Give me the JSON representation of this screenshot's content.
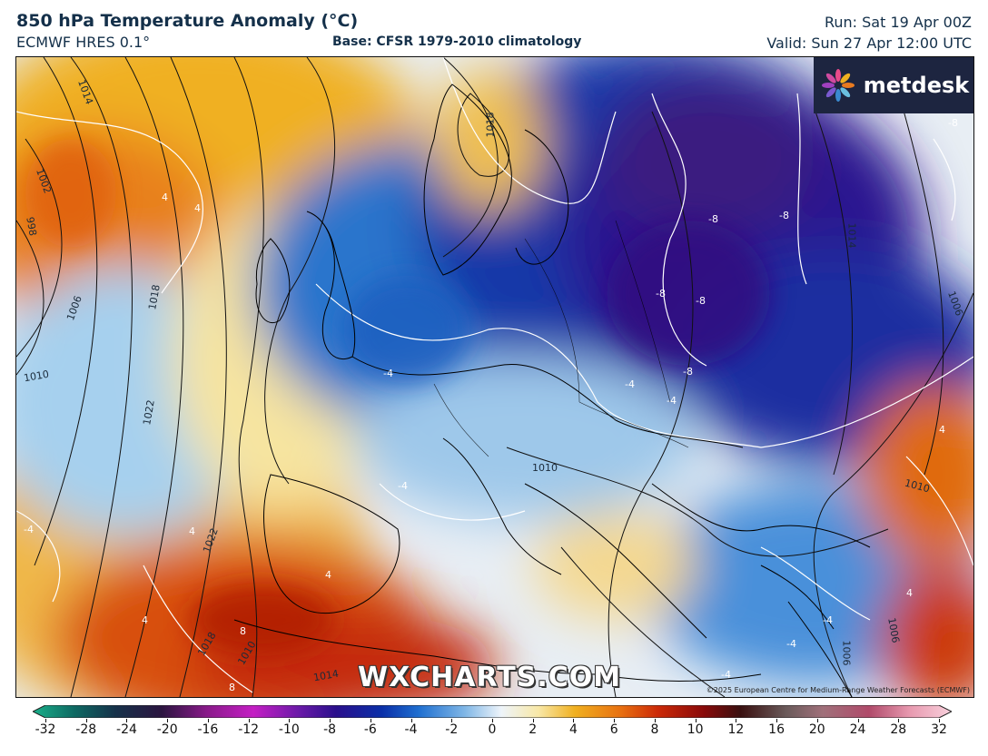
{
  "header": {
    "title": "850 hPa Temperature Anomaly (°C)",
    "model": "ECMWF HRES 0.1°",
    "base": "Base: CFSR 1979-2010 climatology",
    "run": "Run: Sat 19 Apr 00Z",
    "valid": "Valid: Sun 27 Apr 12:00 UTC"
  },
  "logo": {
    "text": "metdesk",
    "icon": "metdesk-flower-icon"
  },
  "watermark": "WXCHARTS.COM",
  "copyright": "©2025 European Centre for Medium-Range Weather Forecasts (ECMWF)",
  "isobar_labels": [
    "1014",
    "1018",
    "1002",
    "998",
    "1006",
    "1010",
    "1018",
    "1022",
    "1022",
    "1018",
    "1014",
    "1010",
    "1010",
    "1006",
    "1006",
    "1010",
    "1014",
    "1006"
  ],
  "anomaly_labels": [
    "-8",
    "-8",
    "-8",
    "-8",
    "-8",
    "-8",
    "-4",
    "-4",
    "-4",
    "-4",
    "-4",
    "-4",
    "-4",
    "-4",
    "4",
    "4",
    "4",
    "4",
    "4",
    "4",
    "4",
    "8",
    "8"
  ],
  "colorbar": {
    "ticks": [
      "-32",
      "-28",
      "-24",
      "-20",
      "-16",
      "-12",
      "-10",
      "-8",
      "-6",
      "-4",
      "-2",
      "0",
      "2",
      "4",
      "6",
      "8",
      "10",
      "12",
      "16",
      "20",
      "24",
      "28",
      "32"
    ],
    "colors": [
      "#19b08a",
      "#0e6a63",
      "#16324a",
      "#2b1540",
      "#8a1a8a",
      "#c41ec4",
      "#6a1aa8",
      "#2a0f8c",
      "#0a2fa8",
      "#1f6fd0",
      "#7fb6e6",
      "#eef4fa",
      "#f8e8a8",
      "#f0b020",
      "#e87010",
      "#cc2a08",
      "#8a0a0a",
      "#3a1010",
      "#6a5a5a",
      "#a0707a",
      "#b04a6a",
      "#e89ab0",
      "#f8d0dc"
    ]
  }
}
